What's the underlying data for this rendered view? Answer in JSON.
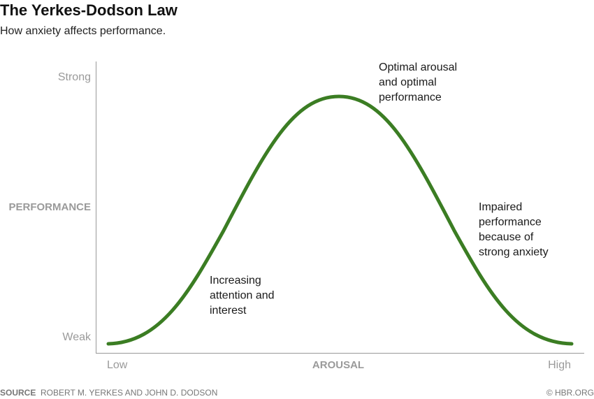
{
  "header": {
    "title": "The Yerkes-Dodson Law",
    "subtitle": "How anxiety affects performance."
  },
  "y_axis": {
    "top": "Strong",
    "label": "PERFORMANCE",
    "bottom": "Weak"
  },
  "x_axis": {
    "left": "Low",
    "label": "AROUSAL",
    "right": "High"
  },
  "annotations": [
    [
      "Optimal arousal",
      "and optimal",
      "performance"
    ],
    [
      "Impaired",
      "performance",
      "because of",
      "strong anxiety"
    ],
    [
      "Increasing",
      "attention and",
      "interest"
    ]
  ],
  "footer": {
    "source_label": "SOURCE",
    "source": "ROBERT M. YERKES AND JOHN D. DODSON",
    "credit": "© HBR.ORG"
  }
}
